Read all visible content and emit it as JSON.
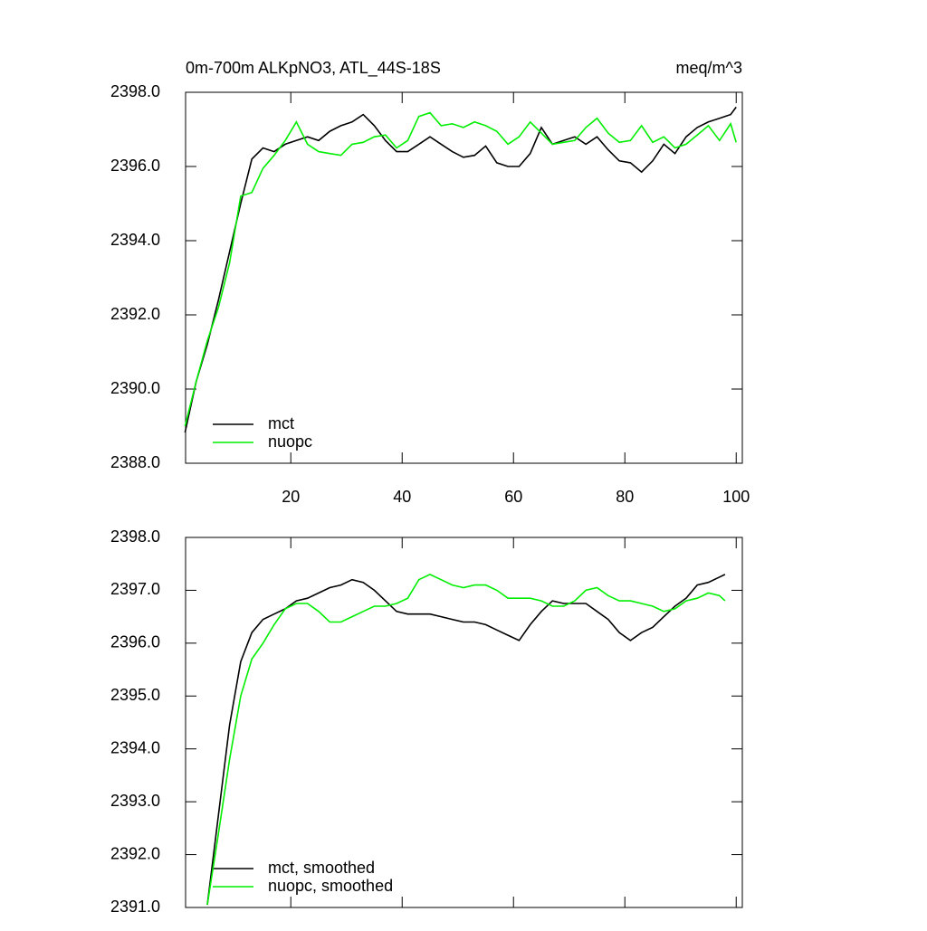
{
  "chart_data": [
    {
      "type": "line",
      "title": "0m-700m ALKpNO3, ATL_44S-18S",
      "units": "meq/m^3",
      "x": [
        1,
        3,
        5,
        7,
        9,
        11,
        13,
        15,
        17,
        19,
        21,
        23,
        25,
        27,
        29,
        31,
        33,
        35,
        37,
        39,
        41,
        43,
        45,
        47,
        49,
        51,
        53,
        55,
        57,
        59,
        61,
        63,
        65,
        67,
        69,
        71,
        73,
        75,
        77,
        79,
        81,
        83,
        85,
        87,
        89,
        91,
        93,
        95,
        97,
        99,
        100
      ],
      "series": [
        {
          "name": "mct",
          "color": "#000000",
          "values": [
            2388.83,
            2390.2,
            2391.2,
            2392.4,
            2393.7,
            2395.0,
            2396.2,
            2396.5,
            2396.4,
            2396.6,
            2396.7,
            2396.8,
            2396.7,
            2396.95,
            2397.1,
            2397.2,
            2397.4,
            2397.1,
            2396.7,
            2396.4,
            2396.4,
            2396.6,
            2396.8,
            2396.6,
            2396.4,
            2396.25,
            2396.3,
            2396.55,
            2396.1,
            2396.0,
            2396.0,
            2396.35,
            2397.05,
            2396.6,
            2396.7,
            2396.8,
            2396.6,
            2396.8,
            2396.45,
            2396.15,
            2396.1,
            2395.85,
            2396.15,
            2396.6,
            2396.35,
            2396.8,
            2397.05,
            2397.2,
            2397.3,
            2397.4,
            2397.6
          ]
        },
        {
          "name": "nuopc",
          "color": "#00ee00",
          "values": [
            2389.0,
            2390.2,
            2391.3,
            2392.2,
            2393.4,
            2395.2,
            2395.3,
            2395.95,
            2396.3,
            2396.7,
            2397.2,
            2396.6,
            2396.4,
            2396.35,
            2396.3,
            2396.6,
            2396.65,
            2396.8,
            2396.85,
            2396.5,
            2396.7,
            2397.35,
            2397.45,
            2397.1,
            2397.15,
            2397.05,
            2397.2,
            2397.1,
            2396.95,
            2396.6,
            2396.8,
            2397.2,
            2396.9,
            2396.6,
            2396.65,
            2396.7,
            2397.05,
            2397.3,
            2396.9,
            2396.65,
            2396.7,
            2397.1,
            2396.65,
            2396.8,
            2396.5,
            2396.6,
            2396.85,
            2397.1,
            2396.7,
            2397.15,
            2396.65
          ]
        }
      ],
      "xlim": [
        1.1,
        101.1
      ],
      "xticks": [
        20,
        40,
        60,
        80,
        100
      ],
      "ylim": [
        2388,
        2398
      ],
      "yticks": [
        {
          "value": 2388,
          "label": "2388.0"
        },
        {
          "value": 2390,
          "label": "2390.0"
        },
        {
          "value": 2392,
          "label": "2392.0"
        },
        {
          "value": 2394,
          "label": "2394.0"
        },
        {
          "value": 2396,
          "label": "2396.0"
        },
        {
          "value": 2398,
          "label": "2398.0"
        }
      ],
      "legend": "lower left"
    },
    {
      "type": "line",
      "x": [
        5,
        7,
        9,
        11,
        13,
        15,
        17,
        19,
        21,
        23,
        25,
        27,
        29,
        31,
        33,
        35,
        37,
        39,
        41,
        43,
        45,
        47,
        49,
        51,
        53,
        55,
        57,
        59,
        61,
        63,
        65,
        67,
        69,
        71,
        73,
        75,
        77,
        79,
        81,
        83,
        85,
        87,
        89,
        91,
        93,
        95,
        97,
        98
      ],
      "series": [
        {
          "name": "mct, smoothed",
          "color": "#000000",
          "values": [
            2391.05,
            2392.75,
            2394.45,
            2395.65,
            2396.2,
            2396.45,
            2396.55,
            2396.65,
            2396.8,
            2396.85,
            2396.95,
            2397.05,
            2397.1,
            2397.2,
            2397.15,
            2397.0,
            2396.8,
            2396.6,
            2396.55,
            2396.55,
            2396.55,
            2396.5,
            2396.45,
            2396.4,
            2396.4,
            2396.35,
            2396.25,
            2396.15,
            2396.05,
            2396.35,
            2396.6,
            2396.8,
            2396.75,
            2396.75,
            2396.75,
            2396.6,
            2396.45,
            2396.2,
            2396.05,
            2396.2,
            2396.3,
            2396.5,
            2396.7,
            2396.85,
            2397.1,
            2397.15,
            2397.25,
            2397.3
          ]
        },
        {
          "name": "nuopc, smoothed",
          "color": "#00ee00",
          "values": [
            2391.05,
            2392.4,
            2393.8,
            2395.0,
            2395.7,
            2396.0,
            2396.35,
            2396.65,
            2396.75,
            2396.75,
            2396.6,
            2396.4,
            2396.4,
            2396.5,
            2396.6,
            2396.7,
            2396.7,
            2396.75,
            2396.85,
            2397.2,
            2397.3,
            2397.2,
            2397.1,
            2397.05,
            2397.1,
            2397.1,
            2397.0,
            2396.85,
            2396.85,
            2396.85,
            2396.8,
            2396.7,
            2396.7,
            2396.8,
            2397.0,
            2397.05,
            2396.9,
            2396.8,
            2396.8,
            2396.75,
            2396.7,
            2396.6,
            2396.65,
            2396.8,
            2396.85,
            2396.95,
            2396.9,
            2396.8
          ]
        }
      ],
      "xlim": [
        1.1,
        101.1
      ],
      "xticks": [
        20,
        40,
        60,
        80,
        100
      ],
      "xtick_labels": false,
      "ylim": [
        2391,
        2398
      ],
      "yticks": [
        {
          "value": 2391,
          "label": "2391.0"
        },
        {
          "value": 2392,
          "label": "2392.0"
        },
        {
          "value": 2393,
          "label": "2393.0"
        },
        {
          "value": 2394,
          "label": "2394.0"
        },
        {
          "value": 2395,
          "label": "2395.0"
        },
        {
          "value": 2396,
          "label": "2396.0"
        },
        {
          "value": 2397,
          "label": "2397.0"
        },
        {
          "value": 2398,
          "label": "2398.0"
        }
      ],
      "legend": "lower left"
    }
  ]
}
